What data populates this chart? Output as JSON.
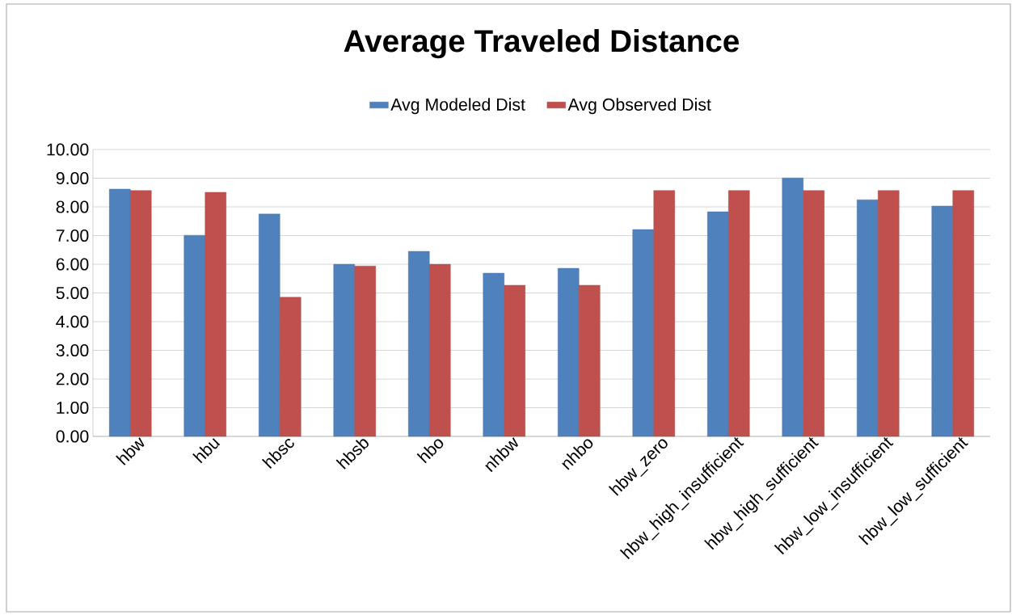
{
  "chart_data": {
    "type": "bar",
    "title": "Average Traveled Distance",
    "categories": [
      "hbw",
      "hbu",
      "hbsc",
      "hbsb",
      "hbo",
      "nhbw",
      "nhbo",
      "hbw_zero",
      "hbw_high_insufficient",
      "hbw_high_sufficient",
      "hbw_low_insufficient",
      "hbw_low_sufficient"
    ],
    "series": [
      {
        "name": "Avg Modeled Dist",
        "color": "#4f81bd",
        "values": [
          8.62,
          7.01,
          7.75,
          6.0,
          6.45,
          5.69,
          5.86,
          7.21,
          7.83,
          9.01,
          8.25,
          8.03
        ]
      },
      {
        "name": "Avg Observed Dist",
        "color": "#c0504d",
        "values": [
          8.57,
          8.51,
          4.85,
          5.94,
          6.0,
          5.27,
          5.27,
          8.57,
          8.57,
          8.57,
          8.57,
          8.57
        ]
      }
    ],
    "ylim": [
      0,
      10
    ],
    "yticks": [
      {
        "value": 0,
        "label": "0.00"
      },
      {
        "value": 1,
        "label": "1.00"
      },
      {
        "value": 2,
        "label": "2.00"
      },
      {
        "value": 3,
        "label": "3.00"
      },
      {
        "value": 4,
        "label": "4.00"
      },
      {
        "value": 5,
        "label": "5.00"
      },
      {
        "value": 6,
        "label": "6.00"
      },
      {
        "value": 7,
        "label": "7.00"
      },
      {
        "value": 8,
        "label": "8.00"
      },
      {
        "value": 9,
        "label": "9.00"
      },
      {
        "value": 10,
        "label": "10.00"
      }
    ],
    "grid": "y",
    "legend": "top"
  }
}
